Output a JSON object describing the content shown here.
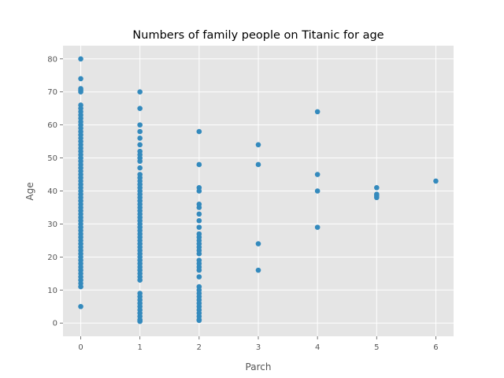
{
  "chart_data": {
    "type": "scatter",
    "title": "Numbers of family people on Titanic for age",
    "xlabel": "Parch",
    "ylabel": "Age",
    "xlim": [
      -0.3,
      6.3
    ],
    "ylim": [
      -4,
      84
    ],
    "xticks": [
      0,
      1,
      2,
      3,
      4,
      5,
      6
    ],
    "yticks": [
      0,
      10,
      20,
      30,
      40,
      50,
      60,
      70,
      80
    ],
    "grid": true,
    "marker_color": "#348abd",
    "background_color": "#e5e5e5",
    "series": [
      {
        "points": [
          [
            0,
            80
          ],
          [
            0,
            74
          ],
          [
            0,
            71
          ],
          [
            0,
            70.5
          ],
          [
            0,
            70
          ],
          [
            0,
            66
          ],
          [
            0,
            65
          ],
          [
            0,
            64
          ],
          [
            0,
            63
          ],
          [
            0,
            62
          ],
          [
            0,
            61
          ],
          [
            0,
            60
          ],
          [
            0,
            59
          ],
          [
            0,
            58
          ],
          [
            0,
            57
          ],
          [
            0,
            56
          ],
          [
            0,
            55
          ],
          [
            0,
            54
          ],
          [
            0,
            53
          ],
          [
            0,
            52
          ],
          [
            0,
            51
          ],
          [
            0,
            50
          ],
          [
            0,
            49
          ],
          [
            0,
            48
          ],
          [
            0,
            47
          ],
          [
            0,
            46
          ],
          [
            0,
            45
          ],
          [
            0,
            44
          ],
          [
            0,
            43
          ],
          [
            0,
            42
          ],
          [
            0,
            41
          ],
          [
            0,
            40
          ],
          [
            0,
            39
          ],
          [
            0,
            38
          ],
          [
            0,
            37
          ],
          [
            0,
            36
          ],
          [
            0,
            35
          ],
          [
            0,
            34
          ],
          [
            0,
            33
          ],
          [
            0,
            32
          ],
          [
            0,
            31
          ],
          [
            0,
            30
          ],
          [
            0,
            29
          ],
          [
            0,
            28
          ],
          [
            0,
            27
          ],
          [
            0,
            26
          ],
          [
            0,
            25
          ],
          [
            0,
            24
          ],
          [
            0,
            23
          ],
          [
            0,
            22
          ],
          [
            0,
            21
          ],
          [
            0,
            20
          ],
          [
            0,
            19
          ],
          [
            0,
            18
          ],
          [
            0,
            17
          ],
          [
            0,
            16
          ],
          [
            0,
            15
          ],
          [
            0,
            14
          ],
          [
            0,
            13
          ],
          [
            0,
            12
          ],
          [
            0,
            11
          ],
          [
            0,
            5
          ],
          [
            1,
            70
          ],
          [
            1,
            65
          ],
          [
            1,
            60
          ],
          [
            1,
            58
          ],
          [
            1,
            56
          ],
          [
            1,
            54
          ],
          [
            1,
            52
          ],
          [
            1,
            51
          ],
          [
            1,
            50
          ],
          [
            1,
            49
          ],
          [
            1,
            47
          ],
          [
            1,
            45
          ],
          [
            1,
            44
          ],
          [
            1,
            43
          ],
          [
            1,
            42
          ],
          [
            1,
            41
          ],
          [
            1,
            40
          ],
          [
            1,
            39
          ],
          [
            1,
            38
          ],
          [
            1,
            37
          ],
          [
            1,
            36
          ],
          [
            1,
            35
          ],
          [
            1,
            34
          ],
          [
            1,
            33
          ],
          [
            1,
            32
          ],
          [
            1,
            31
          ],
          [
            1,
            30
          ],
          [
            1,
            29
          ],
          [
            1,
            28
          ],
          [
            1,
            27
          ],
          [
            1,
            26
          ],
          [
            1,
            25
          ],
          [
            1,
            24
          ],
          [
            1,
            23
          ],
          [
            1,
            22
          ],
          [
            1,
            21
          ],
          [
            1,
            20
          ],
          [
            1,
            19
          ],
          [
            1,
            18
          ],
          [
            1,
            17
          ],
          [
            1,
            16
          ],
          [
            1,
            15
          ],
          [
            1,
            14
          ],
          [
            1,
            13
          ],
          [
            1,
            9
          ],
          [
            1,
            8
          ],
          [
            1,
            7
          ],
          [
            1,
            6
          ],
          [
            1,
            5
          ],
          [
            1,
            4
          ],
          [
            1,
            3
          ],
          [
            1,
            2
          ],
          [
            1,
            1
          ],
          [
            1,
            0.8
          ],
          [
            1,
            0.5
          ],
          [
            2,
            58
          ],
          [
            2,
            48
          ],
          [
            2,
            41
          ],
          [
            2,
            40
          ],
          [
            2,
            36
          ],
          [
            2,
            35
          ],
          [
            2,
            33
          ],
          [
            2,
            31
          ],
          [
            2,
            29
          ],
          [
            2,
            27
          ],
          [
            2,
            26
          ],
          [
            2,
            25
          ],
          [
            2,
            24
          ],
          [
            2,
            23
          ],
          [
            2,
            22
          ],
          [
            2,
            21
          ],
          [
            2,
            19
          ],
          [
            2,
            18
          ],
          [
            2,
            17
          ],
          [
            2,
            16
          ],
          [
            2,
            14
          ],
          [
            2,
            11
          ],
          [
            2,
            10
          ],
          [
            2,
            9
          ],
          [
            2,
            8
          ],
          [
            2,
            7
          ],
          [
            2,
            6
          ],
          [
            2,
            5
          ],
          [
            2,
            4
          ],
          [
            2,
            3
          ],
          [
            2,
            2
          ],
          [
            2,
            1
          ],
          [
            2,
            0.8
          ],
          [
            3,
            54
          ],
          [
            3,
            48
          ],
          [
            3,
            24
          ],
          [
            3,
            16
          ],
          [
            4,
            64
          ],
          [
            4,
            45
          ],
          [
            4,
            40
          ],
          [
            4,
            29
          ],
          [
            5,
            41
          ],
          [
            5,
            39
          ],
          [
            5,
            38.5
          ],
          [
            5,
            38
          ],
          [
            6,
            43
          ]
        ]
      }
    ]
  }
}
